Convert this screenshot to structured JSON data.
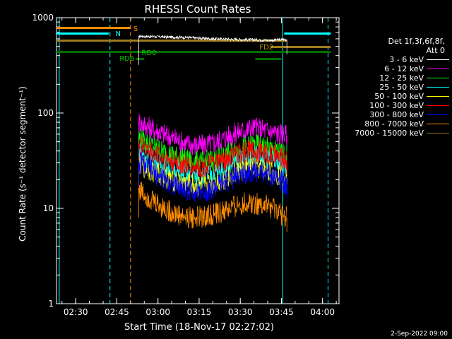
{
  "chart_data": {
    "type": "line",
    "title": "RHESSI Count Rates",
    "xlabel": "Start Time (18-Nov-17 02:27:02)",
    "ylabel": "Count Rate (s⁻¹ detector segment⁻¹)",
    "y_scale": "log",
    "ylim": [
      1,
      1000
    ],
    "y_ticks": [
      "1",
      "10",
      "100",
      "1000"
    ],
    "xlim": [
      "02:23:00",
      "04:06:00"
    ],
    "x_ticks": [
      "02:30",
      "02:45",
      "03:00",
      "03:15",
      "03:30",
      "03:45",
      "04:00"
    ],
    "grid": false,
    "legend_position": "right",
    "legend_header": [
      "Det 1f,3f,6f,8f,",
      "Att 0"
    ],
    "series": [
      {
        "name": "3 - 6 keV",
        "color": "#ffffff",
        "x": [
          "02:53",
          "03:00",
          "03:10",
          "03:20",
          "03:30",
          "03:40",
          "03:47"
        ],
        "y": [
          640,
          630,
          620,
          600,
          590,
          580,
          590
        ]
      },
      {
        "name": "6 - 12 keV",
        "color": "#ff00ff",
        "x": [
          "02:53",
          "02:55",
          "03:00",
          "03:05",
          "03:10",
          "03:15",
          "03:20",
          "03:25",
          "03:30",
          "03:35",
          "03:40",
          "03:43",
          "03:47"
        ],
        "y": [
          82,
          75,
          64,
          55,
          48,
          45,
          48,
          56,
          64,
          70,
          65,
          62,
          58
        ]
      },
      {
        "name": "12 - 25 keV",
        "color": "#00ff00",
        "x": [
          "02:53",
          "02:55",
          "03:00",
          "03:05",
          "03:10",
          "03:15",
          "03:20",
          "03:25",
          "03:30",
          "03:35",
          "03:40",
          "03:43",
          "03:47"
        ],
        "y": [
          56,
          50,
          42,
          36,
          32,
          30,
          32,
          36,
          42,
          46,
          43,
          40,
          36
        ]
      },
      {
        "name": "25 - 50 keV",
        "color": "#00ffff",
        "x": [
          "02:53",
          "02:55",
          "03:00",
          "03:05",
          "03:10",
          "03:15",
          "03:20",
          "03:25",
          "03:30",
          "03:35",
          "03:40",
          "03:43",
          "03:47"
        ],
        "y": [
          40,
          36,
          30,
          26,
          23,
          21,
          23,
          27,
          32,
          35,
          32,
          30,
          27
        ]
      },
      {
        "name": "50 - 100 keV",
        "color": "#ffff00",
        "x": [
          "02:53",
          "02:55",
          "03:00",
          "03:05",
          "03:10",
          "03:15",
          "03:20",
          "03:25",
          "03:30",
          "03:35",
          "03:40",
          "03:43",
          "03:47"
        ],
        "y": [
          30,
          27,
          23,
          20,
          18,
          17,
          18,
          21,
          25,
          27,
          25,
          23,
          21
        ]
      },
      {
        "name": "100 - 300 keV",
        "color": "#ff0000",
        "x": [
          "02:53",
          "02:55",
          "03:00",
          "03:05",
          "03:10",
          "03:15",
          "03:20",
          "03:25",
          "03:30",
          "03:35",
          "03:40",
          "03:43",
          "03:47"
        ],
        "y": [
          48,
          43,
          36,
          32,
          28,
          27,
          29,
          33,
          38,
          41,
          38,
          35,
          32
        ]
      },
      {
        "name": "300 - 800 keV",
        "color": "#0000ff",
        "x": [
          "02:53",
          "02:55",
          "03:00",
          "03:05",
          "03:10",
          "03:15",
          "03:20",
          "03:25",
          "03:30",
          "03:35",
          "03:40",
          "03:43",
          "03:47"
        ],
        "y": [
          32,
          28,
          22,
          18,
          16,
          15,
          16,
          19,
          23,
          25,
          23,
          21,
          18
        ]
      },
      {
        "name": "800 - 7000 keV",
        "color": "#ff8c00",
        "x": [
          "02:53",
          "02:55",
          "03:00",
          "03:05",
          "03:10",
          "03:15",
          "03:20",
          "03:25",
          "03:30",
          "03:35",
          "03:40",
          "03:43",
          "03:47"
        ],
        "y": [
          16,
          14,
          11,
          9,
          8,
          8,
          8.5,
          9.5,
          11,
          11.5,
          10.5,
          9.5,
          8
        ]
      },
      {
        "name": "7000 - 15000 keV",
        "color": "#9e7b1e",
        "x": [],
        "y": []
      }
    ],
    "annotations": [
      {
        "text": "S",
        "color": "#ff8c00"
      },
      {
        "text": "N",
        "color": "#00ffff"
      },
      {
        "text": "RD6",
        "color": "#00cc00"
      },
      {
        "text": "RD0",
        "color": "#00cc00"
      },
      {
        "text": "FD2",
        "color": "#c8a000"
      }
    ],
    "vertical_lines": [
      {
        "x": "02:24:00",
        "color": "#00ffff",
        "style": "solid"
      },
      {
        "x": "02:42:30",
        "color": "#00ffff",
        "style": "dashed"
      },
      {
        "x": "02:50:00",
        "color": "#ff8c00",
        "style": "dashed"
      },
      {
        "x": "03:45:30",
        "color": "#00ffff",
        "style": "solid"
      },
      {
        "x": "04:02:00",
        "color": "#00ffff",
        "style": "dashed"
      }
    ]
  },
  "footer": {
    "date": "2-Sep-2022 09:00"
  }
}
